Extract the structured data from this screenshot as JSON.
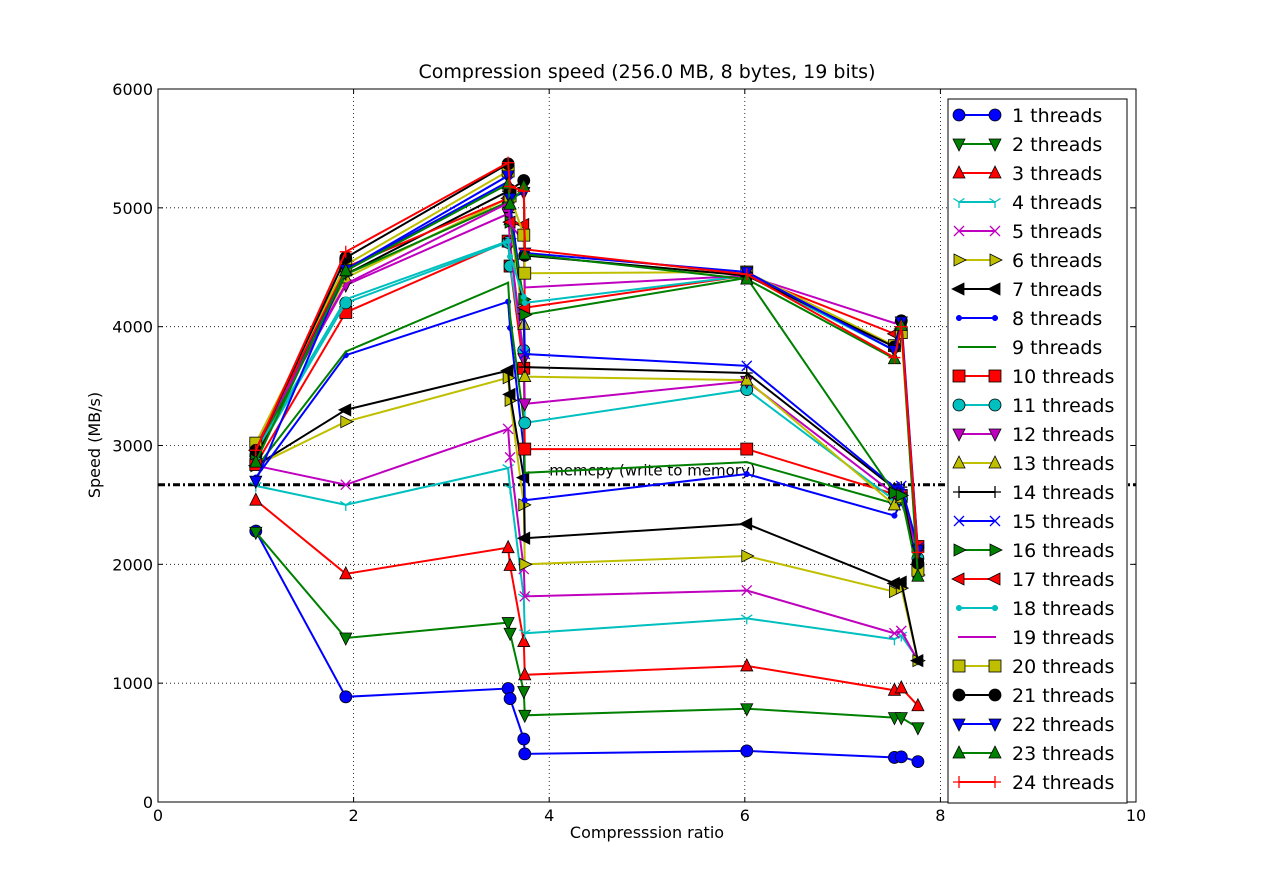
{
  "chart_data": {
    "type": "line",
    "title": "Compression speed (256.0 MB, 8 bytes, 19 bits)",
    "xlabel": "Compresssion ratio",
    "ylabel": "Speed (MB/s)",
    "xlim": [
      0,
      10
    ],
    "ylim": [
      0,
      6000
    ],
    "xticks": [
      0,
      2,
      4,
      6,
      8,
      10
    ],
    "yticks": [
      0,
      1000,
      2000,
      3000,
      4000,
      5000,
      6000
    ],
    "grid": true,
    "legend_position": "right",
    "reference_line": {
      "y": 2670,
      "label": "memcpy (write to memory)"
    },
    "x": [
      1.0,
      1.92,
      3.58,
      3.6,
      3.74,
      3.75,
      6.02,
      7.53,
      7.6,
      7.77
    ],
    "series": [
      {
        "name": "1 threads",
        "color": "#0000ff",
        "marker": "circle",
        "values": [
          2280,
          885,
          955,
          870,
          530,
          405,
          430,
          375,
          380,
          340
        ]
      },
      {
        "name": "2 threads",
        "color": "#008000",
        "marker": "triangle-down",
        "values": [
          2270,
          1380,
          1510,
          1420,
          930,
          730,
          785,
          710,
          710,
          625
        ]
      },
      {
        "name": "3 threads",
        "color": "#ff0000",
        "marker": "triangle-up",
        "values": [
          2540,
          1920,
          2140,
          1990,
          1350,
          1070,
          1145,
          940,
          960,
          810
        ]
      },
      {
        "name": "4 threads",
        "color": "#00bfbf",
        "marker": "tri",
        "values": [
          2660,
          2500,
          2810,
          2640,
          1720,
          1420,
          1545,
          1370,
          1400,
          1200
        ]
      },
      {
        "name": "5 threads",
        "color": "#bf00bf",
        "marker": "x",
        "values": [
          2830,
          2670,
          3140,
          2900,
          1960,
          1730,
          1780,
          1420,
          1440,
          1190
        ]
      },
      {
        "name": "6 threads",
        "color": "#bfbf00",
        "marker": "triangle-right",
        "values": [
          2830,
          3200,
          3570,
          3380,
          2500,
          2000,
          2070,
          1770,
          1800,
          1190
        ]
      },
      {
        "name": "7 threads",
        "color": "#000000",
        "marker": "triangle-left",
        "values": [
          2830,
          3300,
          3630,
          3430,
          2730,
          2220,
          2340,
          1840,
          1850,
          1190
        ]
      },
      {
        "name": "8 threads",
        "color": "#0000ff",
        "marker": "dot",
        "values": [
          2730,
          3760,
          4210,
          3990,
          2970,
          2540,
          2760,
          2410,
          2520,
          2120
        ]
      },
      {
        "name": "9 threads",
        "color": "#008000",
        "marker": "pixel",
        "values": [
          2810,
          3790,
          4370,
          4090,
          3210,
          2770,
          2860,
          2510,
          2560,
          2070
        ]
      },
      {
        "name": "10 threads",
        "color": "#ff0000",
        "marker": "square",
        "values": [
          2840,
          4120,
          4720,
          4510,
          3650,
          2970,
          2970,
          2590,
          2580,
          2150
        ]
      },
      {
        "name": "11 threads",
        "color": "#00bfbf",
        "marker": "circle",
        "values": [
          2920,
          4200,
          4710,
          4510,
          3800,
          3190,
          3470,
          2540,
          2550,
          2050
        ]
      },
      {
        "name": "12 threads",
        "color": "#bf00bf",
        "marker": "triangle-down",
        "values": [
          2990,
          4350,
          4950,
          4700,
          3730,
          3350,
          3540,
          2590,
          2560,
          2100
        ]
      },
      {
        "name": "13 threads",
        "color": "#bfbf00",
        "marker": "triangle-up",
        "values": [
          2950,
          4410,
          5080,
          4900,
          4020,
          3580,
          3550,
          2500,
          2560,
          1960
        ]
      },
      {
        "name": "14 threads",
        "color": "#000000",
        "marker": "plus",
        "values": [
          2900,
          4440,
          5140,
          4960,
          4110,
          3660,
          3610,
          2640,
          2650,
          1930
        ]
      },
      {
        "name": "15 threads",
        "color": "#0000ff",
        "marker": "x",
        "values": [
          2960,
          4480,
          5220,
          5030,
          4180,
          3770,
          3670,
          2650,
          2660,
          2140
        ]
      },
      {
        "name": "16 threads",
        "color": "#008000",
        "marker": "triangle-right",
        "values": [
          2930,
          4440,
          5050,
          4880,
          4230,
          4100,
          4410,
          2600,
          2580,
          1910
        ]
      },
      {
        "name": "17 threads",
        "color": "#ff0000",
        "marker": "triangle-left",
        "values": [
          2960,
          4500,
          5080,
          4880,
          4860,
          4160,
          4430,
          3940,
          3980,
          2000
        ]
      },
      {
        "name": "18 threads",
        "color": "#00bfbf",
        "marker": "dot",
        "values": [
          2950,
          4230,
          4720,
          4590,
          4250,
          4200,
          4430,
          3800,
          4020,
          1960
        ]
      },
      {
        "name": "19 threads",
        "color": "#bf00bf",
        "marker": "pixel",
        "values": [
          3000,
          4360,
          5040,
          4860,
          4720,
          4330,
          4430,
          4030,
          4080,
          2110
        ]
      },
      {
        "name": "20 threads",
        "color": "#bfbf00",
        "marker": "square",
        "values": [
          3020,
          4520,
          5310,
          5100,
          4770,
          4450,
          4460,
          3840,
          3950,
          1950
        ]
      },
      {
        "name": "21 threads",
        "color": "#000000",
        "marker": "circle",
        "values": [
          2960,
          4580,
          5370,
          5150,
          5230,
          4600,
          4430,
          3830,
          4050,
          2010
        ]
      },
      {
        "name": "22 threads",
        "color": "#0000ff",
        "marker": "triangle-down",
        "values": [
          2700,
          4480,
          5270,
          5080,
          5130,
          4620,
          4460,
          3800,
          4040,
          2120
        ]
      },
      {
        "name": "23 threads",
        "color": "#008000",
        "marker": "triangle-up",
        "values": [
          2860,
          4470,
          5200,
          5030,
          5180,
          4610,
          4400,
          3730,
          4010,
          1900
        ]
      },
      {
        "name": "24 threads",
        "color": "#ff0000",
        "marker": "plus",
        "values": [
          2960,
          4630,
          5380,
          5180,
          5140,
          4650,
          4440,
          3740,
          4000,
          2100
        ]
      }
    ]
  }
}
